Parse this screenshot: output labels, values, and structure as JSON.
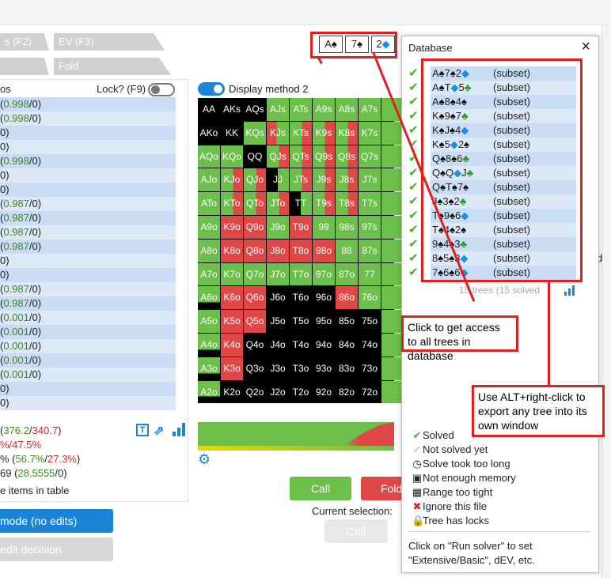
{
  "tabs": [
    {
      "label": "s (F2)"
    },
    {
      "label": "EV (F3)"
    },
    {
      "label": ""
    },
    {
      "label": "Fold"
    }
  ],
  "left_panel": {
    "header": "os",
    "lock_label": "Lock? (F9)",
    "rows": [
      {
        "a": "(",
        "b": "0.998",
        "c": "/0)"
      },
      {
        "a": "(",
        "b": "0.998",
        "c": "/0)"
      },
      {
        "a": "0)",
        "b": "",
        "c": ""
      },
      {
        "a": "0)",
        "b": "",
        "c": ""
      },
      {
        "a": "(",
        "b": "0.998",
        "c": "/0)"
      },
      {
        "a": "0)",
        "b": "",
        "c": ""
      },
      {
        "a": "0)",
        "b": "",
        "c": ""
      },
      {
        "a": "(",
        "b": "0.987",
        "c": "/0)"
      },
      {
        "a": "(",
        "b": "0.987",
        "c": "/0)"
      },
      {
        "a": "(",
        "b": "0.987",
        "c": "/0)"
      },
      {
        "a": "(",
        "b": "0.987",
        "c": "/0)"
      },
      {
        "a": "0)",
        "b": "",
        "c": ""
      },
      {
        "a": "0)",
        "b": "",
        "c": ""
      },
      {
        "a": "(",
        "b": "0.987",
        "c": "/0)"
      },
      {
        "a": "(",
        "b": "0.987",
        "c": "/0)"
      },
      {
        "a": "(",
        "b": "0.001",
        "c": "/0)"
      },
      {
        "a": "(",
        "b": "0.001",
        "c": "/0)"
      },
      {
        "a": "(",
        "b": "0.001",
        "c": "/0)"
      },
      {
        "a": "(",
        "b": "0.001",
        "c": "/0)"
      },
      {
        "a": "(",
        "b": "0.001",
        "c": "/0)"
      },
      {
        "a": "0)",
        "b": "",
        "c": ""
      },
      {
        "a": "0)",
        "b": "",
        "c": ""
      }
    ],
    "stats": {
      "line1_pre": "(",
      "line1_g": "376.2",
      "line1_sep": "/",
      "line1_r": "340.7",
      "line1_post": ")",
      "line2": "%/47.5%",
      "line3_pre": "% (",
      "line3_g": "56.7%",
      "line3_sep": "/",
      "line3_r": "27.3%",
      "line3_post": ")",
      "line4_pre": "69 (",
      "line4_g": "28.5555",
      "line4_post": "/0)",
      "line5": "e items in table"
    },
    "mode_button": "mode (no edits)",
    "edit_button": "edit decision"
  },
  "board_cards": [
    {
      "rank": "A",
      "suit": "♠",
      "color": "#000"
    },
    {
      "rank": "7",
      "suit": "♠",
      "color": "#000"
    },
    {
      "rank": "2",
      "suit": "◆",
      "color": "#1a8fe0"
    }
  ],
  "display_method": "Display method 2",
  "grid": [
    [
      "AA",
      "AKs",
      "AQs",
      "AJs",
      "ATs",
      "A9s",
      "A8s",
      "A7s",
      ""
    ],
    [
      "AKo",
      "KK",
      "KQs",
      "KJs",
      "KTs",
      "K9s",
      "K8s",
      "K7s",
      ""
    ],
    [
      "AQo",
      "KQo",
      "QQ",
      "QJs",
      "QTs",
      "Q9s",
      "Q8s",
      "Q7s",
      ""
    ],
    [
      "AJo",
      "KJo",
      "QJo",
      "JJ",
      "JTs",
      "J9s",
      "J8s",
      "J7s",
      ""
    ],
    [
      "ATo",
      "KTo",
      "QTo",
      "JTo",
      "TT",
      "T9s",
      "T8s",
      "T7s",
      ""
    ],
    [
      "A9o",
      "K9o",
      "Q9o",
      "J9o",
      "T9o",
      "99",
      "98s",
      "97s",
      ""
    ],
    [
      "A8o",
      "K8o",
      "Q8o",
      "J8o",
      "T8o",
      "98o",
      "88",
      "87s",
      ""
    ],
    [
      "A7o",
      "K7o",
      "Q7o",
      "J7o",
      "T7o",
      "97o",
      "87o",
      "77",
      ""
    ],
    [
      "A6o",
      "K6o",
      "Q6o",
      "J6o",
      "T6o",
      "96o",
      "86o",
      "76o",
      ""
    ],
    [
      "A5o",
      "K5o",
      "Q5o",
      "J5o",
      "T5o",
      "95o",
      "85o",
      "75o",
      ""
    ],
    [
      "A4o",
      "K4o",
      "Q4o",
      "J4o",
      "T4o",
      "94o",
      "84o",
      "74o",
      ""
    ],
    [
      "A3o",
      "K3o",
      "Q3o",
      "J3o",
      "T3o",
      "93o",
      "83o",
      "73o",
      ""
    ],
    [
      "A2o",
      "K2o",
      "Q2o",
      "J2o",
      "T2o",
      "92o",
      "82o",
      "72o",
      ""
    ]
  ],
  "grid_colors": [
    [
      "c-b",
      "c-b",
      "c-b",
      "c-g",
      "c-g",
      "c-g",
      "c-g",
      "c-g",
      "c-g"
    ],
    [
      "c-b",
      "c-b",
      "c-g",
      "c-rg",
      "c-gr",
      "c-gr",
      "c-gr",
      "c-g",
      "c-g"
    ],
    [
      "c-g",
      "c-g",
      "c-b",
      "c-gr",
      "c-gr",
      "c-gr",
      "c-gr",
      "c-g",
      "c-g"
    ],
    [
      "c-g",
      "c-gr",
      "c-gr",
      "c-bg",
      "c-gr",
      "c-gr",
      "c-gr",
      "c-g",
      "c-g"
    ],
    [
      "c-g",
      "c-gr",
      "c-gr",
      "c-gr",
      "c-bg",
      "c-gr",
      "c-gr",
      "c-g",
      "c-g"
    ],
    [
      "c-g",
      "c-r",
      "c-r",
      "c-g",
      "c-r",
      "c-g",
      "c-g",
      "c-g",
      "c-g"
    ],
    [
      "c-g",
      "c-r",
      "c-r",
      "c-r",
      "c-r",
      "c-r",
      "c-g",
      "c-g",
      "c-g"
    ],
    [
      "c-g",
      "c-g",
      "c-g",
      "c-g",
      "c-g",
      "c-g",
      "c-g",
      "c-g",
      "c-g"
    ],
    [
      "c-gb",
      "c-r",
      "c-r",
      "c-b",
      "c-b",
      "c-b",
      "c-r",
      "c-g",
      "c-g"
    ],
    [
      "c-g",
      "c-r",
      "c-r",
      "c-b",
      "c-b",
      "c-b",
      "c-b",
      "c-b",
      "c-g"
    ],
    [
      "c-gb",
      "c-r",
      "c-b",
      "c-b",
      "c-b",
      "c-b",
      "c-b",
      "c-b",
      "c-g"
    ],
    [
      "c-gb",
      "c-r",
      "c-b",
      "c-b",
      "c-b",
      "c-b",
      "c-b",
      "c-b",
      "c-g"
    ],
    [
      "c-gb",
      "c-b",
      "c-b",
      "c-b",
      "c-b",
      "c-b",
      "c-b",
      "c-b",
      "c-g"
    ]
  ],
  "action_buttons": {
    "call": "Call",
    "fold": "Fold",
    "current_selection": "Current selection:",
    "call_disabled": "Call"
  },
  "database": {
    "title": "Database",
    "close": "×",
    "rows": [
      {
        "cards": [
          [
            "A",
            "♠",
            "#000"
          ],
          [
            "7",
            "♠",
            "#000"
          ],
          [
            "2",
            "◆",
            "#1a8fe0"
          ]
        ],
        "tag": "(subset)"
      },
      {
        "cards": [
          [
            "A",
            "♠",
            "#000"
          ],
          [
            "T",
            "◆",
            "#1a8fe0"
          ],
          [
            "5",
            "♣",
            "#2a9a2a"
          ]
        ],
        "tag": "(subset)"
      },
      {
        "cards": [
          [
            "A",
            "♠",
            "#000"
          ],
          [
            "8",
            "♠",
            "#000"
          ],
          [
            "4",
            "♠",
            "#000"
          ]
        ],
        "tag": "(subset)"
      },
      {
        "cards": [
          [
            "K",
            "♠",
            "#000"
          ],
          [
            "9",
            "♠",
            "#000"
          ],
          [
            "7",
            "♣",
            "#2a9a2a"
          ]
        ],
        "tag": "(subset)"
      },
      {
        "cards": [
          [
            "K",
            "♠",
            "#000"
          ],
          [
            "J",
            "♠",
            "#000"
          ],
          [
            "4",
            "◆",
            "#1a8fe0"
          ]
        ],
        "tag": "(subset)"
      },
      {
        "cards": [
          [
            "K",
            "♠",
            "#000"
          ],
          [
            "5",
            "◆",
            "#1a8fe0"
          ],
          [
            "2",
            "♠",
            "#000"
          ]
        ],
        "tag": "(subset)"
      },
      {
        "cards": [
          [
            "Q",
            "♠",
            "#000"
          ],
          [
            "8",
            "♠",
            "#000"
          ],
          [
            "6",
            "♣",
            "#2a9a2a"
          ]
        ],
        "tag": "(subset)"
      },
      {
        "cards": [
          [
            "Q",
            "♠",
            "#000"
          ],
          [
            "Q",
            "◆",
            "#1a8fe0"
          ],
          [
            "J",
            "♣",
            "#2a9a2a"
          ]
        ],
        "tag": "(subset)"
      },
      {
        "cards": [
          [
            "Q",
            "♠",
            "#000"
          ],
          [
            "T",
            "♠",
            "#000"
          ],
          [
            "7",
            "♠",
            "#000"
          ]
        ],
        "tag": "(subset)"
      },
      {
        "cards": [
          [
            "J",
            "♠",
            "#000"
          ],
          [
            "3",
            "♠",
            "#000"
          ],
          [
            "2",
            "♣",
            "#2a9a2a"
          ]
        ],
        "tag": "(subset)"
      },
      {
        "cards": [
          [
            "T",
            "♠",
            "#000"
          ],
          [
            "9",
            "♠",
            "#000"
          ],
          [
            "6",
            "◆",
            "#1a8fe0"
          ]
        ],
        "tag": "(subset)"
      },
      {
        "cards": [
          [
            "T",
            "♠",
            "#000"
          ],
          [
            "4",
            "♠",
            "#000"
          ],
          [
            "2",
            "♠",
            "#000"
          ]
        ],
        "tag": "(subset)"
      },
      {
        "cards": [
          [
            "9",
            "♠",
            "#000"
          ],
          [
            "4",
            "♠",
            "#000"
          ],
          [
            "3",
            "♣",
            "#2a9a2a"
          ]
        ],
        "tag": "(subset)"
      },
      {
        "cards": [
          [
            "8",
            "♠",
            "#000"
          ],
          [
            "5",
            "♠",
            "#000"
          ],
          [
            "3",
            "◆",
            "#1a8fe0"
          ]
        ],
        "tag": "(subset)"
      },
      {
        "cards": [
          [
            "7",
            "♠",
            "#000"
          ],
          [
            "6",
            "♠",
            "#000"
          ],
          [
            "6",
            "◆",
            "#1a8fe0"
          ]
        ],
        "tag": "(subset)"
      }
    ],
    "summary": "15 trees (15 solved",
    "legend": [
      {
        "icon": "✔",
        "color": "#4caf2a",
        "label": "Solved",
        "name": "solved-icon"
      },
      {
        "icon": "✔",
        "color": "#cfcfcf",
        "label": "Not solved yet",
        "name": "not-solved-icon"
      },
      {
        "icon": "◷",
        "color": "#222",
        "label": "Solve took too long",
        "name": "clock-icon"
      },
      {
        "icon": "▣",
        "color": "#222",
        "label": "Not enough memory",
        "name": "memory-icon"
      },
      {
        "icon": "▦",
        "color": "#222",
        "label": "Range too tight",
        "name": "grid-icon"
      },
      {
        "icon": "✖",
        "color": "#e02020",
        "label": "Ignore this file",
        "name": "ignore-icon"
      },
      {
        "icon": "🔒",
        "color": "#222",
        "label": "Tree has locks",
        "name": "lock-icon"
      }
    ],
    "footer": "Click on \"Run solver\" to set \"Extensive/Basic\", dEV, etc."
  },
  "callouts": {
    "access": "Click to get access to all trees in database",
    "export": "Use ALT+right-click to export any tree into its own window"
  },
  "right_edge": {
    "letter": "d"
  }
}
